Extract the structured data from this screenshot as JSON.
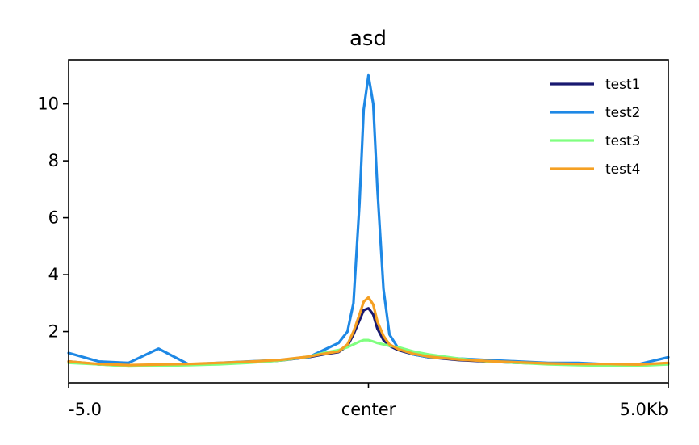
{
  "chart_data": {
    "type": "line",
    "title": "asd",
    "xlabel": "",
    "ylabel": "",
    "x_tick_labels": [
      "-5.0",
      "center",
      "5.0Kb"
    ],
    "y_tick_labels": [
      "2",
      "4",
      "6",
      "8",
      "10"
    ],
    "y_ticks": [
      2,
      4,
      6,
      8,
      10
    ],
    "xlim": [
      -5.0,
      5.0
    ],
    "ylim": [
      0.2,
      11.55
    ],
    "x_tick_values": [
      -5.0,
      0,
      5.0
    ],
    "grid": false,
    "legend_position": "top-right",
    "x": [
      -5.0,
      -4.5,
      -4.0,
      -3.5,
      -3.0,
      -2.5,
      -2.0,
      -1.5,
      -1.0,
      -0.75,
      -0.5,
      -0.35,
      -0.25,
      -0.15,
      -0.08,
      0,
      0.08,
      0.15,
      0.25,
      0.35,
      0.5,
      0.75,
      1.0,
      1.5,
      2.0,
      2.5,
      3.0,
      3.5,
      4.0,
      4.5,
      5.0
    ],
    "series": [
      {
        "name": "test1",
        "color": "#191970",
        "values": [
          0.95,
          0.85,
          0.8,
          0.82,
          0.85,
          0.88,
          0.92,
          0.98,
          1.1,
          1.2,
          1.28,
          1.5,
          1.9,
          2.4,
          2.75,
          2.82,
          2.6,
          2.1,
          1.7,
          1.5,
          1.35,
          1.2,
          1.1,
          1.0,
          0.95,
          0.9,
          0.87,
          0.85,
          0.85,
          0.82,
          0.88
        ]
      },
      {
        "name": "test2",
        "color": "#1e88e5",
        "values": [
          1.25,
          0.95,
          0.9,
          1.4,
          0.85,
          0.9,
          0.95,
          1.0,
          1.1,
          1.35,
          1.6,
          2.0,
          3.0,
          6.5,
          9.8,
          11.0,
          10.0,
          7.0,
          3.5,
          1.9,
          1.4,
          1.2,
          1.1,
          1.05,
          1.0,
          0.95,
          0.9,
          0.9,
          0.85,
          0.85,
          1.1
        ]
      },
      {
        "name": "test3",
        "color": "#80ff80",
        "values": [
          0.9,
          0.85,
          0.78,
          0.8,
          0.82,
          0.85,
          0.9,
          0.98,
          1.12,
          1.25,
          1.35,
          1.45,
          1.55,
          1.65,
          1.7,
          1.7,
          1.65,
          1.6,
          1.55,
          1.5,
          1.45,
          1.3,
          1.2,
          1.05,
          0.95,
          0.9,
          0.85,
          0.82,
          0.8,
          0.8,
          0.85
        ]
      },
      {
        "name": "test4",
        "color": "#f5a023",
        "values": [
          0.95,
          0.86,
          0.82,
          0.84,
          0.86,
          0.9,
          0.94,
          1.0,
          1.12,
          1.22,
          1.3,
          1.55,
          2.0,
          2.6,
          3.05,
          3.2,
          2.95,
          2.35,
          1.85,
          1.55,
          1.38,
          1.22,
          1.12,
          1.02,
          0.96,
          0.92,
          0.88,
          0.86,
          0.86,
          0.84,
          0.9
        ]
      }
    ]
  }
}
